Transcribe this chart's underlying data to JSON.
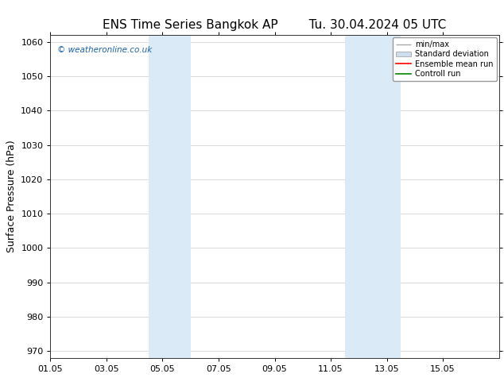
{
  "title_left": "ENS Time Series Bangkok AP",
  "title_right": "Tu. 30.04.2024 05 UTC",
  "ylabel": "Surface Pressure (hPa)",
  "ylim": [
    968,
    1062
  ],
  "yticks": [
    970,
    980,
    990,
    1000,
    1010,
    1020,
    1030,
    1040,
    1050,
    1060
  ],
  "xlim": [
    0,
    16
  ],
  "xtick_labels": [
    "01.05",
    "03.05",
    "05.05",
    "07.05",
    "09.05",
    "11.05",
    "13.05",
    "15.05"
  ],
  "xtick_positions": [
    0,
    2,
    4,
    6,
    8,
    10,
    12,
    14
  ],
  "shaded_regions": [
    {
      "x_start": 3.5,
      "x_end": 5.0
    },
    {
      "x_start": 10.5,
      "x_end": 12.5
    }
  ],
  "shaded_color": "#daeaf6",
  "watermark_text": "© weatheronline.co.uk",
  "watermark_color": "#1a5fa8",
  "legend_items": [
    {
      "label": "min/max"
    },
    {
      "label": "Standard deviation"
    },
    {
      "label": "Ensemble mean run"
    },
    {
      "label": "Controll run"
    }
  ],
  "legend_colors": [
    "#aaaaaa",
    "#ccddee",
    "#ff0000",
    "#008800"
  ],
  "grid_color": "#cccccc",
  "background_color": "#ffffff",
  "title_fontsize": 11,
  "label_fontsize": 8,
  "ylabel_fontsize": 9
}
